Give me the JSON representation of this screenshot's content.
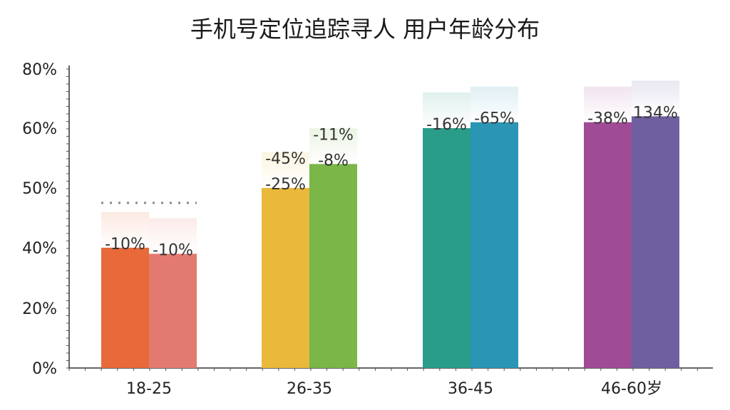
{
  "chart_data": {
    "type": "bar",
    "title": "手机号定位追踪寻人 用户年龄分布",
    "xlabel": "",
    "ylabel": "",
    "y_ticks": [
      "0%",
      "20%",
      "40%",
      "50%",
      "60%",
      "80%"
    ],
    "categories": [
      "18-25",
      "26-35",
      "36-45",
      "46-60岁"
    ],
    "series": [
      {
        "values": [
          40,
          50,
          60,
          62
        ]
      },
      {
        "values": [
          38,
          54,
          62,
          64
        ]
      }
    ],
    "data_labels": [
      [
        "-10%",
        "-10%"
      ],
      [
        "-25%",
        "-8%"
      ],
      [
        "-16%",
        "-65%"
      ],
      [
        "-38%",
        "134%"
      ]
    ],
    "upper_labels": [
      [
        "",
        ""
      ],
      [
        "-45%",
        "-11%"
      ],
      [
        "",
        ""
      ],
      [
        "",
        ""
      ]
    ],
    "reference_line": {
      "category": "18-25",
      "value": 47.5,
      "style": "dotted"
    },
    "colors": [
      [
        "#e8693a",
        "#e37a70"
      ],
      [
        "#eab83a",
        "#7ab648"
      ],
      [
        "#2a9d8a",
        "#2a95b4"
      ],
      [
        "#a04b95",
        "#6f5fa0"
      ]
    ],
    "grid": false,
    "legend": "none"
  }
}
